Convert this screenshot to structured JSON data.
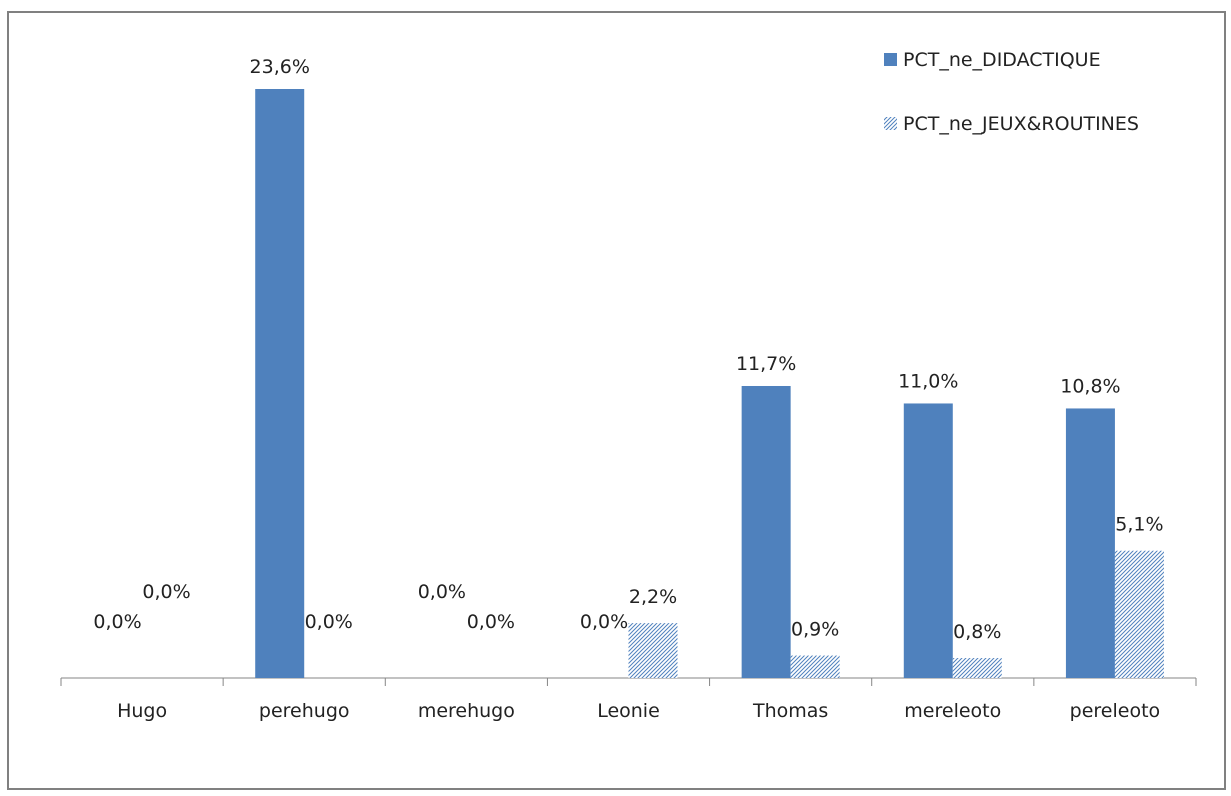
{
  "chart_data": {
    "type": "bar",
    "categories": [
      "Hugo",
      "perehugo",
      "merehugo",
      "Leonie",
      "Thomas",
      "mereleoto",
      "pereleoto"
    ],
    "series": [
      {
        "name": "PCT_ne_DIDACTIQUE",
        "values": [
          0.0,
          23.6,
          0.0,
          0.0,
          11.7,
          11.0,
          10.8
        ],
        "labels": [
          "0,0%",
          "23,6%",
          "0,0%",
          "0,0%",
          "11,7%",
          "11,0%",
          "10,8%"
        ],
        "color": "#4f81bd",
        "pattern": "solid"
      },
      {
        "name": "PCT_ne_JEUX&ROUTINES",
        "values": [
          0.0,
          0.0,
          0.0,
          2.2,
          0.9,
          0.8,
          5.1
        ],
        "labels": [
          "0,0%",
          "0,0%",
          "0,0%",
          "2,2%",
          "0,9%",
          "0,8%",
          "5,1%"
        ],
        "color": "#4f81bd",
        "pattern": "hatched"
      }
    ],
    "legend_position": "top-right",
    "grid": false,
    "ylim": [
      0,
      25
    ]
  }
}
